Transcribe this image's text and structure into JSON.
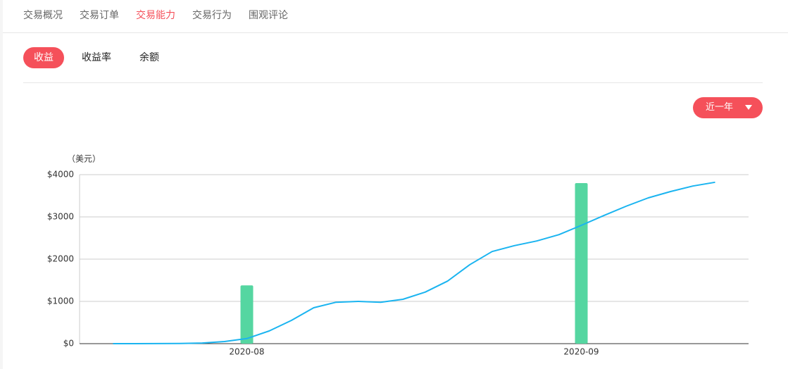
{
  "nav": {
    "tabs": [
      "交易概况",
      "交易订单",
      "交易能力",
      "交易行为",
      "围观评论"
    ],
    "active": 2
  },
  "sub_tabs": {
    "items": [
      "收益",
      "收益率",
      "余额"
    ],
    "active": 0
  },
  "range_selector": "近一年",
  "chart_data": {
    "type": "bar",
    "ylabel": "（美元）",
    "categories": [
      null,
      null,
      null,
      null,
      null,
      null,
      null,
      "2020-08",
      null,
      null,
      null,
      null,
      null,
      null,
      null,
      null,
      null,
      null,
      null,
      null,
      null,
      null,
      "2020-09",
      null,
      null,
      null,
      null,
      null,
      null,
      null
    ],
    "series": [
      {
        "type": "bar",
        "color": "#55d6a1",
        "values": [
          null,
          null,
          null,
          null,
          null,
          null,
          null,
          1380,
          null,
          null,
          null,
          null,
          null,
          null,
          null,
          null,
          null,
          null,
          null,
          null,
          null,
          null,
          3800,
          null,
          null,
          null,
          null,
          null,
          null,
          null
        ]
      },
      {
        "type": "line",
        "color": "#1ab4f0",
        "values": [
          null,
          0,
          0,
          2,
          5,
          15,
          50,
          120,
          300,
          550,
          850,
          980,
          1000,
          980,
          1050,
          1220,
          1480,
          1870,
          2180,
          2320,
          2430,
          2580,
          2800,
          3030,
          3250,
          3450,
          3600,
          3730,
          3820,
          null
        ]
      }
    ],
    "ylim": [
      0,
      4000
    ],
    "yticks": [
      {
        "value": 0,
        "label": "$0"
      },
      {
        "value": 1000,
        "label": "$1000"
      },
      {
        "value": 2000,
        "label": "$2000"
      },
      {
        "value": 3000,
        "label": "$3000"
      },
      {
        "value": 4000,
        "label": "$4000"
      }
    ],
    "grid": true
  }
}
